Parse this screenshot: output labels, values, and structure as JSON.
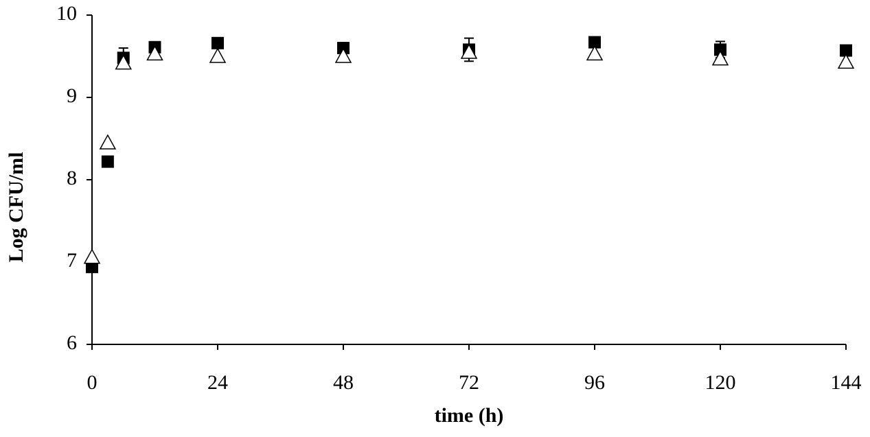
{
  "chart_data": {
    "type": "scatter",
    "xlabel": "time (h)",
    "ylabel": "Log CFU/ml",
    "x": [
      0,
      3,
      6,
      12,
      24,
      48,
      72,
      96,
      120,
      144
    ],
    "series": [
      {
        "color": "#000000",
        "marker": "square",
        "values": [
          6.94,
          8.22,
          9.48,
          9.61,
          9.66,
          9.6,
          9.58,
          9.67,
          9.58,
          9.57
        ],
        "errors": [
          0,
          0,
          0.12,
          0.02,
          0.02,
          0.05,
          0.14,
          0.02,
          0.1,
          0.03
        ]
      },
      {
        "color": "#000000",
        "marker": "triangle",
        "values": [
          7.06,
          8.45,
          9.42,
          9.53,
          9.5,
          9.5,
          9.55,
          9.53,
          9.47,
          9.43
        ]
      }
    ],
    "xlim": [
      0,
      144
    ],
    "xticks": [
      0,
      24,
      48,
      72,
      96,
      120,
      144
    ],
    "ylim": [
      6,
      10
    ],
    "yticks": [
      6,
      7,
      8,
      9,
      10
    ]
  }
}
